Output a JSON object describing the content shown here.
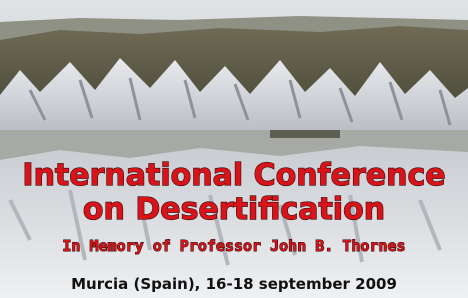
{
  "banner": {
    "title_line1": "International Conference",
    "title_line2": "on Desertification",
    "dedication": "In Memory of  Professor John B. Thornes",
    "location_date": "Murcia (Spain), 16-18 september 2009"
  }
}
